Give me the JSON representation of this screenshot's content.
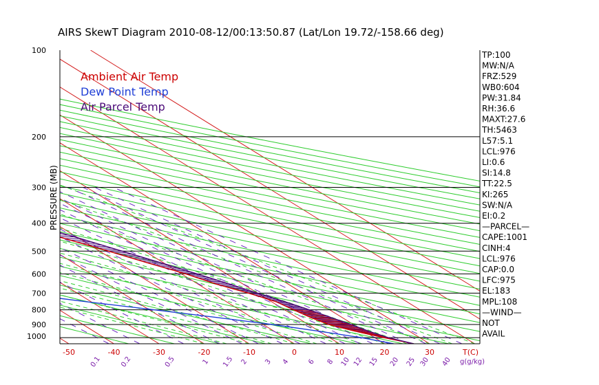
{
  "chart_data": {
    "type": "skew-t",
    "title": "AIRS SkewT Diagram 2010-08-12/00:13:50.87 (Lat/Lon 19.72/-158.66 deg)",
    "ylabel": "PRESSURE (MB)",
    "xlabel": "T(C)",
    "mixing_ratio_label": "g(g/kg)",
    "y_scale": "log",
    "pressure_ticks": [
      100,
      200,
      300,
      400,
      500,
      600,
      700,
      800,
      900,
      1000
    ],
    "isobar_lines": [
      200,
      300,
      400,
      500,
      600,
      700,
      800,
      900,
      1000
    ],
    "ylim": [
      1050,
      100
    ],
    "top_temp_ticks": [
      -120,
      -110,
      -100,
      -90,
      -80,
      -70,
      -60,
      -50,
      -40
    ],
    "bottom_temp_ticks": [
      -50,
      -40,
      -30,
      -20,
      -10,
      0,
      10,
      20,
      30
    ],
    "mixing_ratio_ticks": [
      0.1,
      0.2,
      0.5,
      1,
      1.5,
      2,
      3,
      4,
      6,
      8,
      10,
      12,
      15,
      20,
      25,
      30,
      40
    ],
    "legend": [
      {
        "label": "Ambient Air Temp",
        "color": "#cc0000"
      },
      {
        "label": "Dew Point Temp",
        "color": "#1f3fd6"
      },
      {
        "label": "Air Parcel Temp",
        "color": "#4b0a78"
      }
    ],
    "series": [
      {
        "name": "Ambient Air Temp",
        "color": "#cc0000",
        "points": [
          {
            "p": 1050,
            "t": 26.5
          },
          {
            "p": 1000,
            "t": 22
          },
          {
            "p": 950,
            "t": 18
          },
          {
            "p": 900,
            "t": 14.5
          },
          {
            "p": 850,
            "t": 13
          },
          {
            "p": 800,
            "t": 12
          },
          {
            "p": 750,
            "t": 11
          },
          {
            "p": 700,
            "t": 8
          },
          {
            "p": 650,
            "t": 4
          },
          {
            "p": 600,
            "t": 1
          },
          {
            "p": 550,
            "t": -3.5
          },
          {
            "p": 500,
            "t": -8
          },
          {
            "p": 450,
            "t": -13.5
          },
          {
            "p": 400,
            "t": -19.5
          },
          {
            "p": 350,
            "t": -26.5
          },
          {
            "p": 300,
            "t": -35
          },
          {
            "p": 250,
            "t": -45
          },
          {
            "p": 200,
            "t": -57.5
          },
          {
            "p": 175,
            "t": -65
          },
          {
            "p": 150,
            "t": -74
          },
          {
            "p": 140,
            "t": -77
          },
          {
            "p": 120,
            "t": -75
          },
          {
            "p": 100,
            "t": -73
          }
        ]
      },
      {
        "name": "Dew Point Temp",
        "color": "#1f3fd6",
        "points": [
          {
            "p": 1050,
            "t": 22
          },
          {
            "p": 1000,
            "t": 17
          },
          {
            "p": 950,
            "t": 10
          },
          {
            "p": 900,
            "t": 2
          },
          {
            "p": 850,
            "t": -8
          },
          {
            "p": 800,
            "t": -19
          },
          {
            "p": 750,
            "t": -31
          },
          {
            "p": 700,
            "t": -43
          },
          {
            "p": 650,
            "t": -55
          },
          {
            "p": 600,
            "t": -67
          },
          {
            "p": 550,
            "t": -62
          },
          {
            "p": 500,
            "t": -60
          },
          {
            "p": 450,
            "t": -59
          },
          {
            "p": 400,
            "t": -60
          },
          {
            "p": 350,
            "t": -63
          },
          {
            "p": 300,
            "t": -66
          },
          {
            "p": 250,
            "t": -71
          },
          {
            "p": 200,
            "t": -78
          },
          {
            "p": 175,
            "t": -82
          },
          {
            "p": 150,
            "t": -87
          },
          {
            "p": 100,
            "t": -97
          }
        ]
      },
      {
        "name": "Air Parcel Temp",
        "color": "#4b0a78",
        "points": [
          {
            "p": 1050,
            "t": 26.5
          },
          {
            "p": 1000,
            "t": 23
          },
          {
            "p": 950,
            "t": 21
          },
          {
            "p": 900,
            "t": 19.5
          },
          {
            "p": 850,
            "t": 17.5
          },
          {
            "p": 800,
            "t": 15.5
          },
          {
            "p": 750,
            "t": 13
          },
          {
            "p": 700,
            "t": 10
          },
          {
            "p": 650,
            "t": 7
          },
          {
            "p": 600,
            "t": 3.5
          },
          {
            "p": 550,
            "t": -0.5
          },
          {
            "p": 500,
            "t": -5
          },
          {
            "p": 450,
            "t": -10
          },
          {
            "p": 400,
            "t": -16
          },
          {
            "p": 350,
            "t": -22.5
          },
          {
            "p": 300,
            "t": -30
          },
          {
            "p": 250,
            "t": -40
          },
          {
            "p": 200,
            "t": -53
          },
          {
            "p": 183,
            "t": -58.5
          },
          {
            "p": 150,
            "t": -70
          },
          {
            "p": 120,
            "t": -85
          },
          {
            "p": 100,
            "t": -96
          }
        ]
      }
    ],
    "indices": [
      "TP:100",
      "MW:N/A",
      "FRZ:529",
      "WB0:604",
      "PW:31.84",
      "RH:36.6",
      "MAXT:27.6",
      "TH:5463",
      "L57:5.1",
      "LCL:976",
      "LI:0.6",
      "SI:14.8",
      "TT:22.5",
      "KI:265",
      "SW:N/A",
      "EI:0.2",
      "—PARCEL—",
      "CAPE:1001",
      "CINH:4",
      "LCL:976",
      "CAP:0.0",
      "LFC:975",
      "EL:183",
      "MPL:108",
      "—WIND—",
      "NOT",
      "AVAIL"
    ],
    "grid": true
  }
}
